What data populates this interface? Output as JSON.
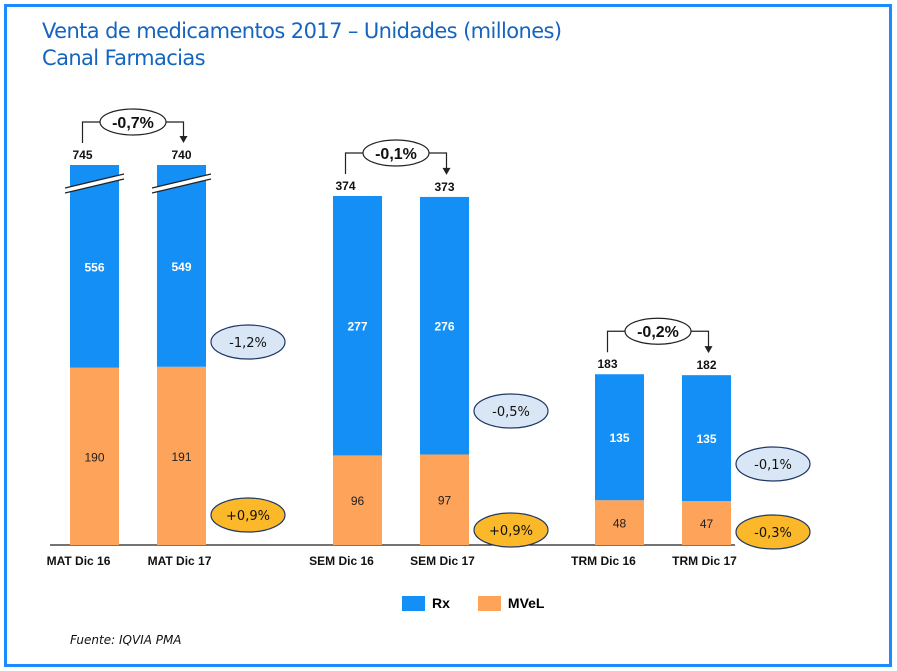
{
  "title": {
    "line1": "Venta de medicamentos 2017 – Unidades (millones)",
    "line2": "Canal Farmacias"
  },
  "source": "Fuente: IQVIA PMA",
  "colors": {
    "frame": "#1a8cff",
    "title": "#1565c0",
    "rx": "#148ff5",
    "mvel": "#fda35a",
    "badge_rx": "#d9e6f5",
    "badge_mvel": "#fbb829",
    "badge_border": "#1f3864"
  },
  "chart_data": {
    "type": "bar",
    "stacked": true,
    "title": "Venta de medicamentos 2017 – Unidades (millones) Canal Farmacias",
    "xlabel": "",
    "ylabel": "",
    "categories": [
      "MAT Dic 16",
      "MAT Dic 17",
      "SEM  Dic 16",
      "SEM  Dic 17",
      "TRM Dic 16",
      "TRM Dic 17"
    ],
    "series": [
      {
        "name": "MVeL",
        "values": [
          190,
          191,
          96,
          97,
          48,
          47
        ]
      },
      {
        "name": "Rx",
        "values": [
          556,
          549,
          277,
          276,
          135,
          135
        ]
      }
    ],
    "totals": [
      745,
      740,
      374,
      373,
      183,
      182
    ],
    "axis_break_on": [
      "MAT Dic 16",
      "MAT Dic 17"
    ],
    "groups": [
      {
        "name": "MAT",
        "total_change": "-0,7%",
        "rx_change": "-1,2%",
        "mvel_change": "+0,9%"
      },
      {
        "name": "SEM",
        "total_change": "-0,1%",
        "rx_change": "-0,5%",
        "mvel_change": "+0,9%"
      },
      {
        "name": "TRM",
        "total_change": "-0,2%",
        "rx_change": "-0,1%",
        "mvel_change": "-0,3%"
      }
    ],
    "legend": {
      "entries": [
        "Rx",
        "MVeL"
      ],
      "position": "bottom"
    },
    "grid": false
  }
}
